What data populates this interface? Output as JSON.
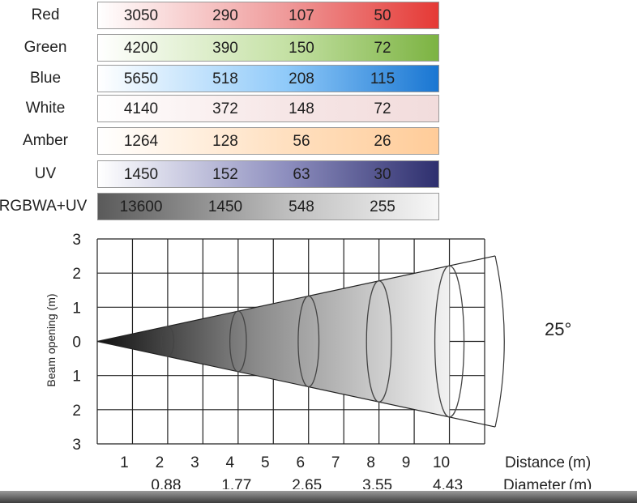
{
  "table": {
    "rows": [
      {
        "label": "Red",
        "values": [
          "3050",
          "290",
          "107",
          "50"
        ],
        "gradient": [
          "#ffffff",
          "#ef9a9a",
          "#e53935"
        ]
      },
      {
        "label": "Green",
        "values": [
          "4200",
          "390",
          "150",
          "72"
        ],
        "gradient": [
          "#ffffff",
          "#c5e1a5",
          "#7cb342"
        ]
      },
      {
        "label": "Blue",
        "values": [
          "5650",
          "518",
          "208",
          "115"
        ],
        "gradient": [
          "#ffffff",
          "#90caf9",
          "#1976d2"
        ]
      },
      {
        "label": "White",
        "values": [
          "4140",
          "372",
          "148",
          "72"
        ],
        "gradient": [
          "#ffffff",
          "#f6e6e6",
          "#f2dcdc"
        ]
      },
      {
        "label": "Amber",
        "values": [
          "1264",
          "128",
          "56",
          "26"
        ],
        "gradient": [
          "#ffffff",
          "#ffe0c0",
          "#ffcc99"
        ]
      },
      {
        "label": "UV",
        "values": [
          "1450",
          "152",
          "63",
          "30"
        ],
        "gradient": [
          "#ffffff",
          "#8e8fbf",
          "#2e2f6e"
        ]
      },
      {
        "label": "RGBWA+UV",
        "values": [
          "13600",
          "1450",
          "548",
          "255"
        ],
        "gradient": [
          "#5a5a5a",
          "#bdbdbd",
          "#f7f7f7"
        ]
      }
    ]
  },
  "chart_data": {
    "type": "diagram",
    "ylabel": "Beam opening (m)",
    "y_ticks": [
      "3",
      "2",
      "1",
      "0",
      "1",
      "2",
      "3"
    ],
    "x_ticks": [
      "1",
      "2",
      "3",
      "4",
      "5",
      "6",
      "7",
      "8",
      "9",
      "10"
    ],
    "distance_label": "Distance (m)",
    "diameter_label": "Diameter (m)",
    "beam_sections": [
      {
        "distance": 2,
        "diameter": "0.88"
      },
      {
        "distance": 4,
        "diameter": "1.77"
      },
      {
        "distance": 6,
        "diameter": "2.65"
      },
      {
        "distance": 8,
        "diameter": "3.55"
      },
      {
        "distance": 10,
        "diameter": "4.43"
      }
    ],
    "beam_angle": "25°",
    "xlim": [
      0,
      11
    ],
    "ylim": [
      -3,
      3
    ]
  }
}
